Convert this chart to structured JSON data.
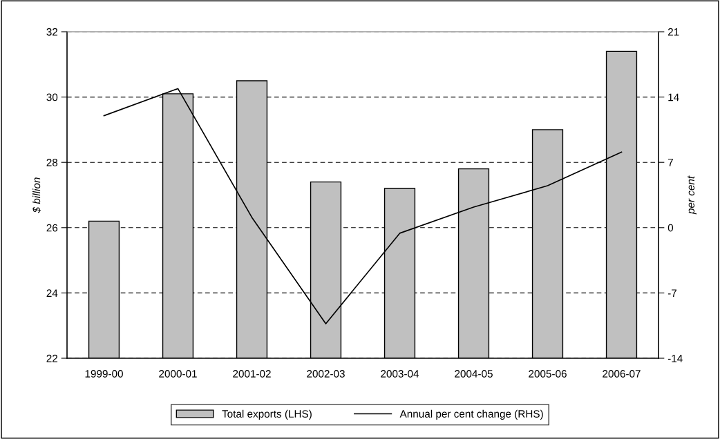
{
  "chart_data": {
    "type": "bar",
    "categories": [
      "1999-00",
      "2000-01",
      "2001-02",
      "2002-03",
      "2003-04",
      "2004-05",
      "2005-06",
      "2006-07"
    ],
    "series": [
      {
        "name": "Total exports (LHS)",
        "color": "#c0c0c0",
        "values": [
          26.2,
          30.1,
          30.5,
          27.4,
          27.2,
          27.8,
          29.0,
          31.4
        ]
      },
      {
        "name": "Annual per cent change (RHS)",
        "type": "line",
        "axis": "y2",
        "color": "#000000",
        "values": [
          12.0,
          14.9,
          1.1,
          -10.3,
          -0.6,
          2.2,
          4.5,
          8.1
        ]
      }
    ],
    "ylabel": "$ billion",
    "y2label": "per cent",
    "ylim": [
      22,
      32
    ],
    "yticks": [
      22,
      24,
      26,
      28,
      30,
      32
    ],
    "y2lim": [
      -14,
      21
    ],
    "y2ticks": [
      -14,
      -7,
      0,
      7,
      14,
      21
    ],
    "grid": "y",
    "line_style": "solid",
    "marker": "none",
    "legend": "bottom"
  }
}
